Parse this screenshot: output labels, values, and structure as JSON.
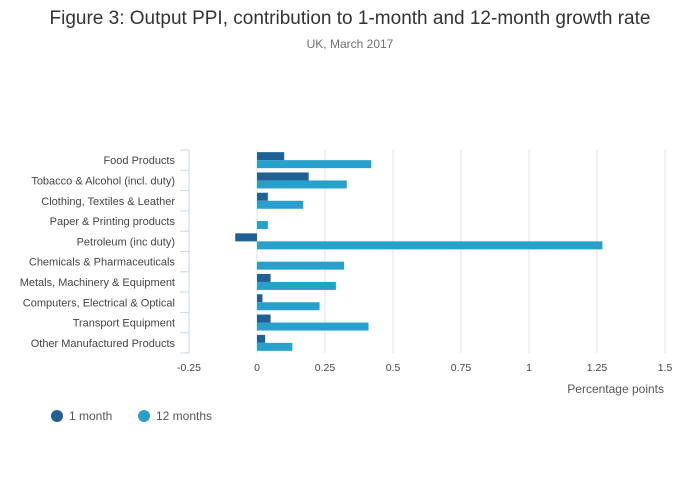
{
  "chart_data": {
    "type": "bar",
    "orientation": "horizontal",
    "title": "Figure 3: Output PPI, contribution to 1-month and 12-month growth rate",
    "subtitle": "UK, March 2017",
    "xlabel": "Percentage points",
    "ylabel": "",
    "xlim": [
      -0.25,
      1.5
    ],
    "xticks": [
      -0.25,
      0,
      0.25,
      0.5,
      0.75,
      1,
      1.25,
      1.5
    ],
    "xtick_labels": [
      "-0.25",
      "0",
      "0.25",
      "0.5",
      "0.75",
      "1",
      "1.25",
      "1.5"
    ],
    "grid": true,
    "legend_position": "bottom-left",
    "categories": [
      "Food Products",
      "Tobacco & Alcohol (incl. duty)",
      "Clothing, Textiles & Leather",
      "Paper & Printing products",
      "Petroleum (inc duty)",
      "Chemicals & Pharmaceuticals",
      "Metals, Machinery & Equipment",
      "Computers, Electrical & Optical",
      "Transport Equipment",
      "Other Manufactured Products"
    ],
    "series": [
      {
        "name": "1 month",
        "color": "#206095",
        "values": [
          0.1,
          0.19,
          0.04,
          0.0,
          -0.08,
          0.0,
          0.05,
          0.02,
          0.05,
          0.03
        ]
      },
      {
        "name": "12 months",
        "color": "#27a0cc",
        "values": [
          0.42,
          0.33,
          0.17,
          0.04,
          1.27,
          0.32,
          0.29,
          0.23,
          0.41,
          0.13
        ]
      }
    ]
  }
}
